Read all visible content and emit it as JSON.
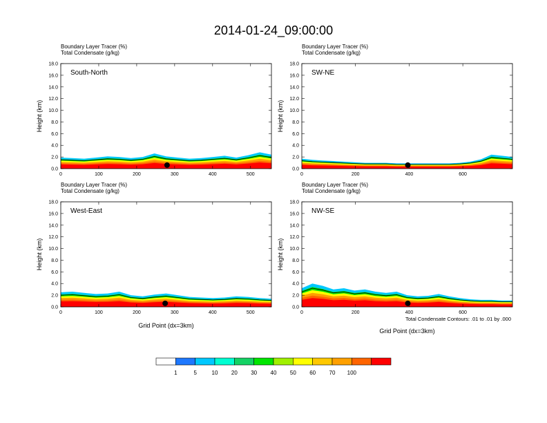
{
  "figure": {
    "title": "2014-01-24_09:00:00",
    "footnote": "Total Condensate Contours: .01 to .01 by .000"
  },
  "colorbar": {
    "labels": [
      "1",
      "5",
      "10",
      "20",
      "30",
      "40",
      "50",
      "60",
      "70",
      "100"
    ],
    "colors": [
      "#ffffff",
      "#1e78ff",
      "#00c8ff",
      "#00ffd2",
      "#14d264",
      "#00e600",
      "#a0f000",
      "#ffff00",
      "#ffc800",
      "#ffa000",
      "#ff6400",
      "#ff0000"
    ]
  },
  "chart_data": [
    {
      "type": "heatmap",
      "panel_label": "South-North",
      "subtitles": [
        "Boundary Layer Tracer   (%)",
        "Total Condensate   (g/kg)"
      ],
      "ylabel": "Height (km)",
      "xlabel": "",
      "xlim": [
        0,
        555
      ],
      "ylim": [
        0,
        18
      ],
      "xticks": [
        0,
        100,
        200,
        300,
        400,
        500
      ],
      "yticks": [
        "0.0",
        "2.0",
        "4.0",
        "6.0",
        "8.0",
        "10.0",
        "12.0",
        "14.0",
        "16.0",
        "18.0"
      ],
      "marker_x": 280,
      "boundary_layer_height_km": [
        1.9,
        1.8,
        1.7,
        1.9,
        2.1,
        2.0,
        1.8,
        2.0,
        2.6,
        2.1,
        1.9,
        1.7,
        1.8,
        2.0,
        2.2,
        1.9,
        2.3,
        2.8,
        2.4
      ]
    },
    {
      "type": "heatmap",
      "panel_label": "SW-NE",
      "subtitles": [
        "Boundary Layer Tracer   (%)",
        "Total Condensate   (g/kg)"
      ],
      "ylabel": "Height (km)",
      "xlabel": "",
      "xlim": [
        0,
        785
      ],
      "ylim": [
        0,
        18
      ],
      "xticks": [
        0,
        200,
        400,
        600
      ],
      "yticks": [
        "0.0",
        "2.0",
        "4.0",
        "6.0",
        "8.0",
        "10.0",
        "12.0",
        "14.0",
        "16.0",
        "18.0"
      ],
      "marker_x": 395,
      "boundary_layer_height_km": [
        1.7,
        1.5,
        1.4,
        1.3,
        1.2,
        1.1,
        1.0,
        1.0,
        1.0,
        0.9,
        0.9,
        0.9,
        0.9,
        0.9,
        0.9,
        1.0,
        1.2,
        1.6,
        2.4,
        2.2,
        2.0
      ]
    },
    {
      "type": "heatmap",
      "panel_label": "West-East",
      "subtitles": [
        "Boundary Layer Tracer   (%)",
        "Total Condensate   (g/kg)"
      ],
      "ylabel": "Height (km)",
      "xlabel": "Grid Point (dx=3km)",
      "xlim": [
        0,
        555
      ],
      "ylim": [
        0,
        18
      ],
      "xticks": [
        0,
        100,
        200,
        300,
        400,
        500
      ],
      "yticks": [
        "0.0",
        "2.0",
        "4.0",
        "6.0",
        "8.0",
        "10.0",
        "12.0",
        "14.0",
        "16.0",
        "18.0"
      ],
      "marker_x": 275,
      "boundary_layer_height_km": [
        2.5,
        2.6,
        2.4,
        2.2,
        2.3,
        2.6,
        2.0,
        1.8,
        2.1,
        2.3,
        2.0,
        1.7,
        1.6,
        1.5,
        1.6,
        1.8,
        1.7,
        1.5,
        1.4
      ]
    },
    {
      "type": "heatmap",
      "panel_label": "NW-SE",
      "subtitles": [
        "Boundary Layer Tracer   (%)",
        "Total Condensate   (g/kg)"
      ],
      "ylabel": "Height (km)",
      "xlabel": "Grid Point (dx=3km)",
      "xlim": [
        0,
        785
      ],
      "ylim": [
        0,
        18
      ],
      "xticks": [
        0,
        200,
        400,
        600
      ],
      "yticks": [
        "0.0",
        "2.0",
        "4.0",
        "6.0",
        "8.0",
        "10.0",
        "12.0",
        "14.0",
        "16.0",
        "18.0"
      ],
      "marker_x": 395,
      "boundary_layer_height_km": [
        3.2,
        4.0,
        3.6,
        3.0,
        3.2,
        2.8,
        3.0,
        2.6,
        2.4,
        2.6,
        2.0,
        1.8,
        1.9,
        2.2,
        1.8,
        1.5,
        1.3,
        1.2,
        1.2,
        1.1,
        1.1
      ]
    }
  ]
}
